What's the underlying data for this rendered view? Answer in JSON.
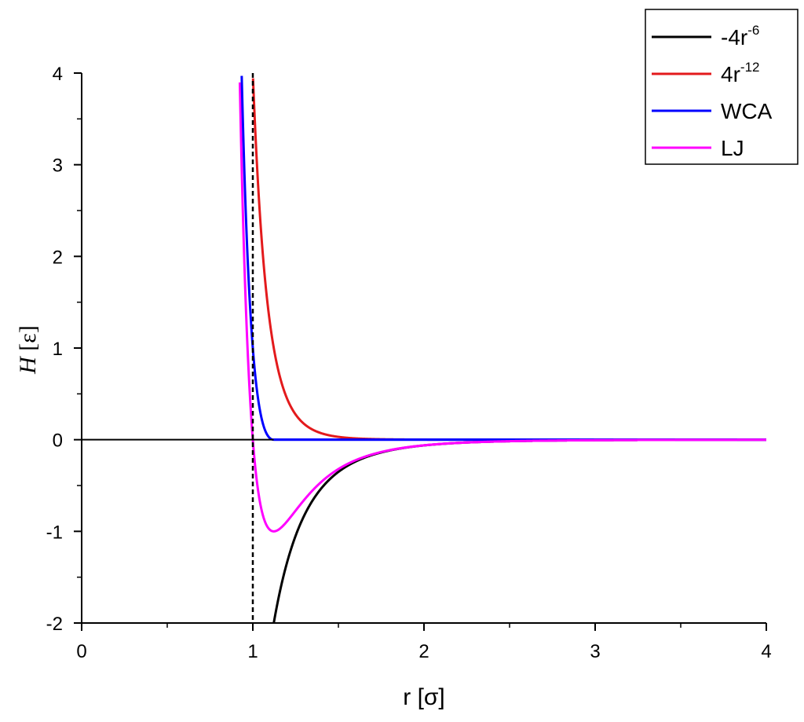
{
  "chart_data": {
    "type": "line",
    "xlabel": {
      "main": "r",
      "unit": "[σ]"
    },
    "ylabel": {
      "main": "H",
      "unit": "[ε]"
    },
    "xlim": [
      0,
      4
    ],
    "ylim": [
      -2,
      4
    ],
    "xticks": [
      "0",
      "1",
      "2",
      "3",
      "4"
    ],
    "yticks": [
      "-2",
      "-1",
      "0",
      "1",
      "2",
      "3",
      "4"
    ],
    "legend_position": "top-right",
    "grid": false,
    "series": [
      {
        "name": "-4r",
        "sup": "-6",
        "color": "#000000",
        "formula": "-4*r^-6",
        "points": [
          [
            1.122,
            -2.0
          ],
          [
            1.15,
            -1.73
          ],
          [
            1.2,
            -1.34
          ],
          [
            1.3,
            -0.83
          ],
          [
            1.4,
            -0.53
          ],
          [
            1.5,
            -0.35
          ],
          [
            1.75,
            -0.14
          ],
          [
            2.0,
            -0.0625
          ],
          [
            2.5,
            -0.016
          ],
          [
            3.0,
            -0.0055
          ],
          [
            4.0,
            -0.001
          ]
        ]
      },
      {
        "name": "4r",
        "sup": "-12",
        "color": "#e31a1c",
        "formula": "4*r^-12",
        "points": [
          [
            1.0,
            4.0
          ],
          [
            1.05,
            2.23
          ],
          [
            1.1,
            1.27
          ],
          [
            1.2,
            0.45
          ],
          [
            1.3,
            0.17
          ],
          [
            1.4,
            0.07
          ],
          [
            1.5,
            0.031
          ],
          [
            1.75,
            0.005
          ],
          [
            2.0,
            0.001
          ],
          [
            3.0,
            0.0
          ],
          [
            4.0,
            0.0
          ]
        ]
      },
      {
        "name": "WCA",
        "sup": "",
        "color": "#0000ff",
        "formula": "wca",
        "points": [
          [
            0.928,
            4.0
          ],
          [
            0.95,
            2.9
          ],
          [
            1.0,
            1.0
          ],
          [
            1.05,
            0.23
          ],
          [
            1.1,
            0.01
          ],
          [
            1.122,
            0.0
          ],
          [
            2.0,
            0.0
          ],
          [
            3.0,
            0.0
          ],
          [
            4.0,
            0.0
          ]
        ]
      },
      {
        "name": "LJ",
        "sup": "",
        "color": "#ff00ff",
        "formula": "lj",
        "points": [
          [
            0.928,
            4.0
          ],
          [
            0.95,
            1.9
          ],
          [
            1.0,
            0.0
          ],
          [
            1.05,
            -0.77
          ],
          [
            1.122,
            -1.0
          ],
          [
            1.2,
            -0.89
          ],
          [
            1.3,
            -0.66
          ],
          [
            1.5,
            -0.32
          ],
          [
            2.0,
            -0.062
          ],
          [
            3.0,
            -0.0055
          ],
          [
            4.0,
            -0.001
          ]
        ]
      }
    ],
    "reference_lines": [
      {
        "type": "vertical",
        "x": 1,
        "style": "dashed",
        "color": "#000000"
      },
      {
        "type": "horizontal",
        "y": 0,
        "style": "solid",
        "color": "#000000"
      }
    ]
  }
}
